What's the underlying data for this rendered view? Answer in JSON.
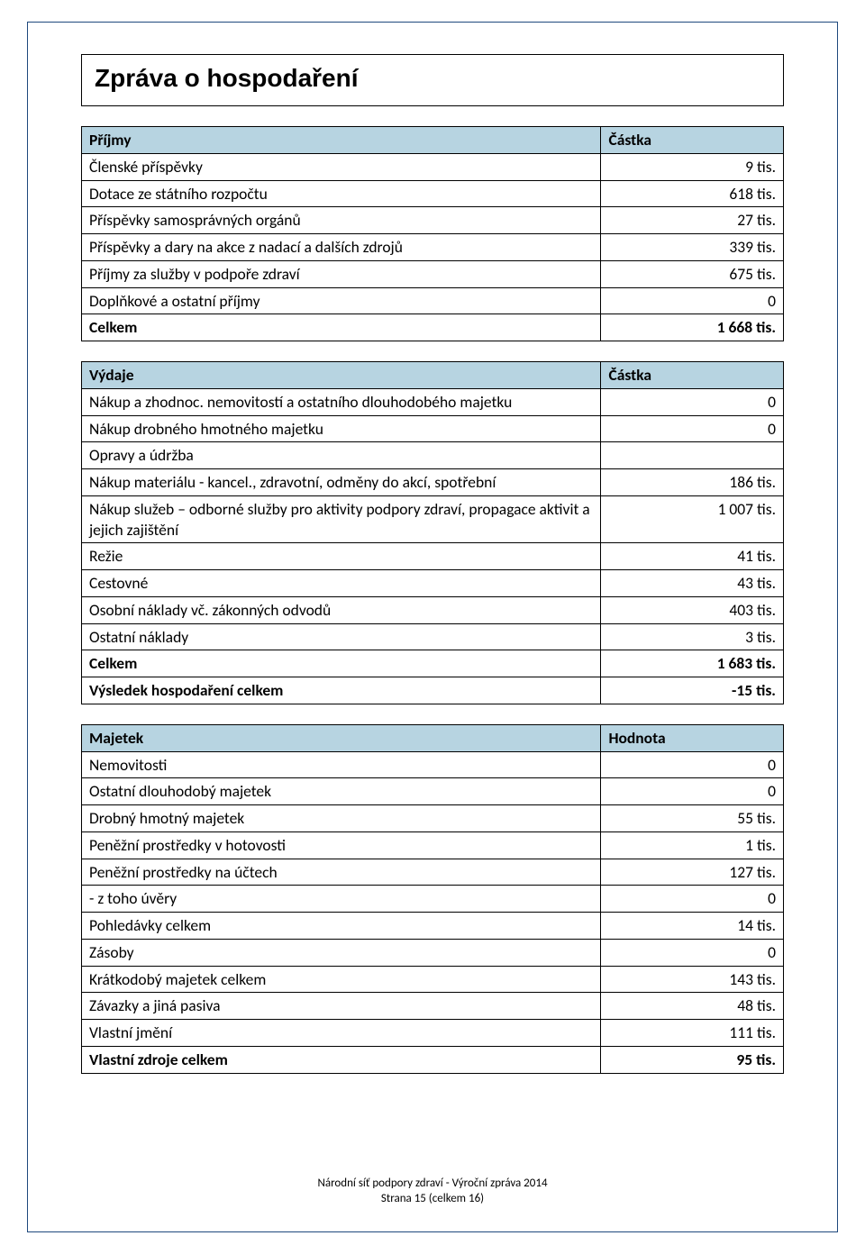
{
  "title": "Zpráva o hospodaření",
  "colors": {
    "header_bg": "#b7d4e1",
    "page_border": "#1f497d",
    "cell_border": "#000000",
    "text": "#000000",
    "bg": "#ffffff"
  },
  "tables": [
    {
      "header": {
        "left": "Příjmy",
        "right": "Částka"
      },
      "col_widths": [
        "74%",
        "26%"
      ],
      "rows": [
        {
          "label": "Členské příspěvky",
          "value": "9 tis.",
          "bold": false
        },
        {
          "label": "Dotace ze státního rozpočtu",
          "value": "618 tis.",
          "bold": false
        },
        {
          "label": "Příspěvky samosprávných orgánů",
          "value": "27 tis.",
          "bold": false
        },
        {
          "label": "Příspěvky a dary na akce z nadací a dalších zdrojů",
          "value": "339 tis.",
          "bold": false
        },
        {
          "label": "Příjmy za služby v podpoře zdraví",
          "value": "675 tis.",
          "bold": false
        },
        {
          "label": "Doplňkové a ostatní příjmy",
          "value": "0",
          "bold": false
        },
        {
          "label": "Celkem",
          "value": "1 668 tis.",
          "bold": true
        }
      ]
    },
    {
      "header": {
        "left": "Výdaje",
        "right": "Částka"
      },
      "col_widths": [
        "74%",
        "26%"
      ],
      "rows": [
        {
          "label": "Nákup a zhodnoc. nemovitostí a ostatního dlouhodobého majetku",
          "value": "0",
          "bold": false
        },
        {
          "label": "Nákup drobného hmotného majetku",
          "value": "0",
          "bold": false
        },
        {
          "label": "Opravy a údržba",
          "value": "",
          "bold": false
        },
        {
          "label": "Nákup materiálu - kancel., zdravotní, odměny do akcí, spotřební",
          "value": "186 tis.",
          "bold": false
        },
        {
          "label": "Nákup služeb – odborné služby pro aktivity podpory zdraví, propagace aktivit a jejich zajištění",
          "value": "1 007 tis.",
          "bold": false
        },
        {
          "label": "Režie",
          "value": "41 tis.",
          "bold": false
        },
        {
          "label": "Cestovné",
          "value": "43 tis.",
          "bold": false
        },
        {
          "label": "Osobní náklady vč. zákonných odvodů",
          "value": "403 tis.",
          "bold": false
        },
        {
          "label": "Ostatní náklady",
          "value": "3 tis.",
          "bold": false
        },
        {
          "label": "Celkem",
          "value": "1 683 tis.",
          "bold": true
        },
        {
          "label": "Výsledek hospodaření celkem",
          "value": "-15 tis.",
          "bold": true
        }
      ]
    },
    {
      "header": {
        "left": "Majetek",
        "right": "Hodnota"
      },
      "col_widths": [
        "74%",
        "26%"
      ],
      "rows": [
        {
          "label": "Nemovitosti",
          "value": "0",
          "bold": false
        },
        {
          "label": "Ostatní dlouhodobý majetek",
          "value": "0",
          "bold": false
        },
        {
          "label": "Drobný hmotný majetek",
          "value": "55 tis.",
          "bold": false
        },
        {
          "label": "Peněžní prostředky v hotovosti",
          "value": "1 tis.",
          "bold": false
        },
        {
          "label": "Peněžní prostředky na účtech",
          "value": "127 tis.",
          "bold": false
        },
        {
          "label": " - z toho úvěry",
          "value": "0",
          "bold": false
        },
        {
          "label": "Pohledávky celkem",
          "value": "14 tis.",
          "bold": false
        },
        {
          "label": "Zásoby",
          "value": "0",
          "bold": false
        },
        {
          "label": "Krátkodobý majetek celkem",
          "value": "143 tis.",
          "bold": false
        },
        {
          "label": "Závazky a jiná pasiva",
          "value": "48 tis.",
          "bold": false
        },
        {
          "label": "Vlastní jmění",
          "value": "111 tis.",
          "bold": false
        },
        {
          "label": "Vlastní zdroje celkem",
          "value": "95 tis.",
          "bold": true
        }
      ]
    }
  ],
  "footer": {
    "line1": "Národní síť podpory zdraví -  Výroční zpráva 2014",
    "line2": "Strana 15 (celkem 16)"
  }
}
